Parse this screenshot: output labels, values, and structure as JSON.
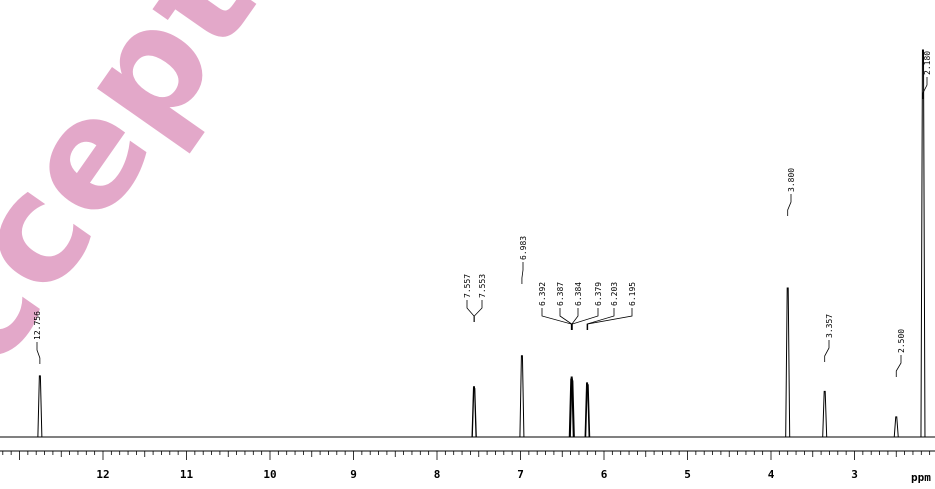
{
  "watermark": {
    "text": "Accepted",
    "color": "#e3a8c9"
  },
  "chart_data": {
    "type": "line",
    "title": "",
    "xlabel": "ppm",
    "ylabel": "",
    "x_reversed": true,
    "xlim": [
      14.0,
      1.9
    ],
    "x_ticks": [
      12,
      11,
      10,
      9,
      8,
      7,
      6,
      5,
      4,
      3
    ],
    "grid": false,
    "peaks": [
      {
        "ppm": 12.756,
        "label": "12.756",
        "height": 0.158
      },
      {
        "ppm": 7.557,
        "label": "7.557",
        "height": 0.13
      },
      {
        "ppm": 7.553,
        "label": "7.553",
        "height": 0.125
      },
      {
        "ppm": 6.983,
        "label": "6.983",
        "height": 0.21
      },
      {
        "ppm": 6.392,
        "label": "6.392",
        "height": 0.15
      },
      {
        "ppm": 6.387,
        "label": "6.387",
        "height": 0.155
      },
      {
        "ppm": 6.384,
        "label": "6.384",
        "height": 0.15
      },
      {
        "ppm": 6.379,
        "label": "6.379",
        "height": 0.145
      },
      {
        "ppm": 6.203,
        "label": "6.203",
        "height": 0.14
      },
      {
        "ppm": 6.195,
        "label": "6.195",
        "height": 0.135
      },
      {
        "ppm": 3.8,
        "label": "3.800",
        "height": 0.385
      },
      {
        "ppm": 3.357,
        "label": "3.357",
        "height": 0.118
      },
      {
        "ppm": 2.5,
        "label": "2.500",
        "height": 0.052
      },
      {
        "ppm": 2.18,
        "label": "2.180",
        "height": 1.0
      }
    ]
  }
}
